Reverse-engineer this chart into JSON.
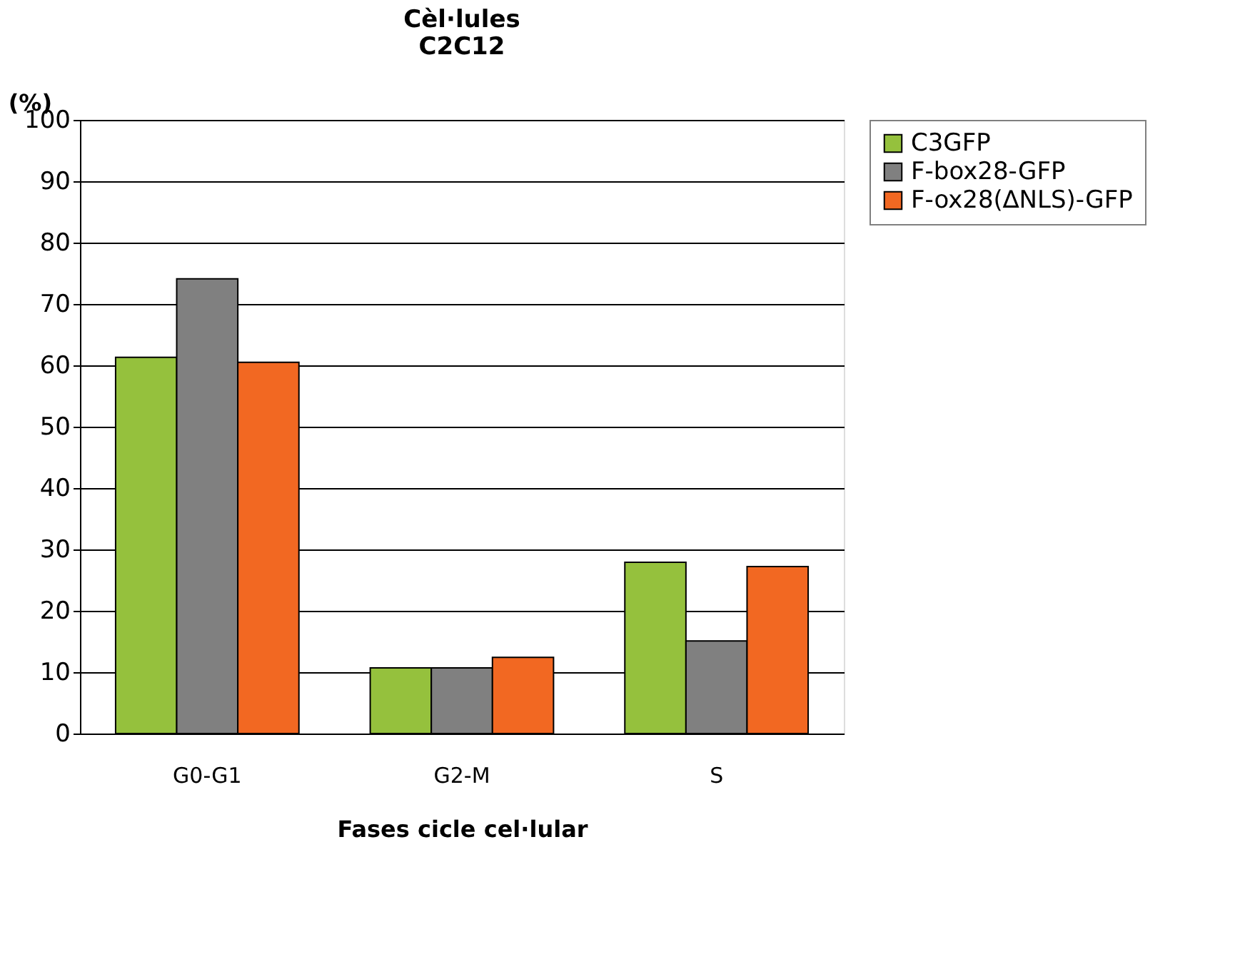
{
  "chart_data": {
    "type": "bar",
    "title": [
      "Cèl·lules",
      "C2C12"
    ],
    "xlabel": "Fases cicle cel·lular",
    "ylabel": "(%)",
    "categories": [
      "G0-G1",
      "G2-M",
      "S"
    ],
    "series": [
      {
        "name": "C3GFP",
        "color": "#95c13d",
        "values": [
          61.3,
          10.7,
          27.9
        ]
      },
      {
        "name": "F-box28-GFP",
        "color": "#808080",
        "values": [
          74.1,
          10.7,
          15.1
        ]
      },
      {
        "name": "F-ox28(∆NLS)-GFP",
        "color": "#f26822",
        "values": [
          60.5,
          12.4,
          27.2
        ]
      }
    ],
    "ylim": [
      0,
      100
    ],
    "yticks": [
      0,
      10,
      20,
      30,
      40,
      50,
      60,
      70,
      80,
      90,
      100
    ],
    "grid": "y",
    "legend": "right"
  }
}
